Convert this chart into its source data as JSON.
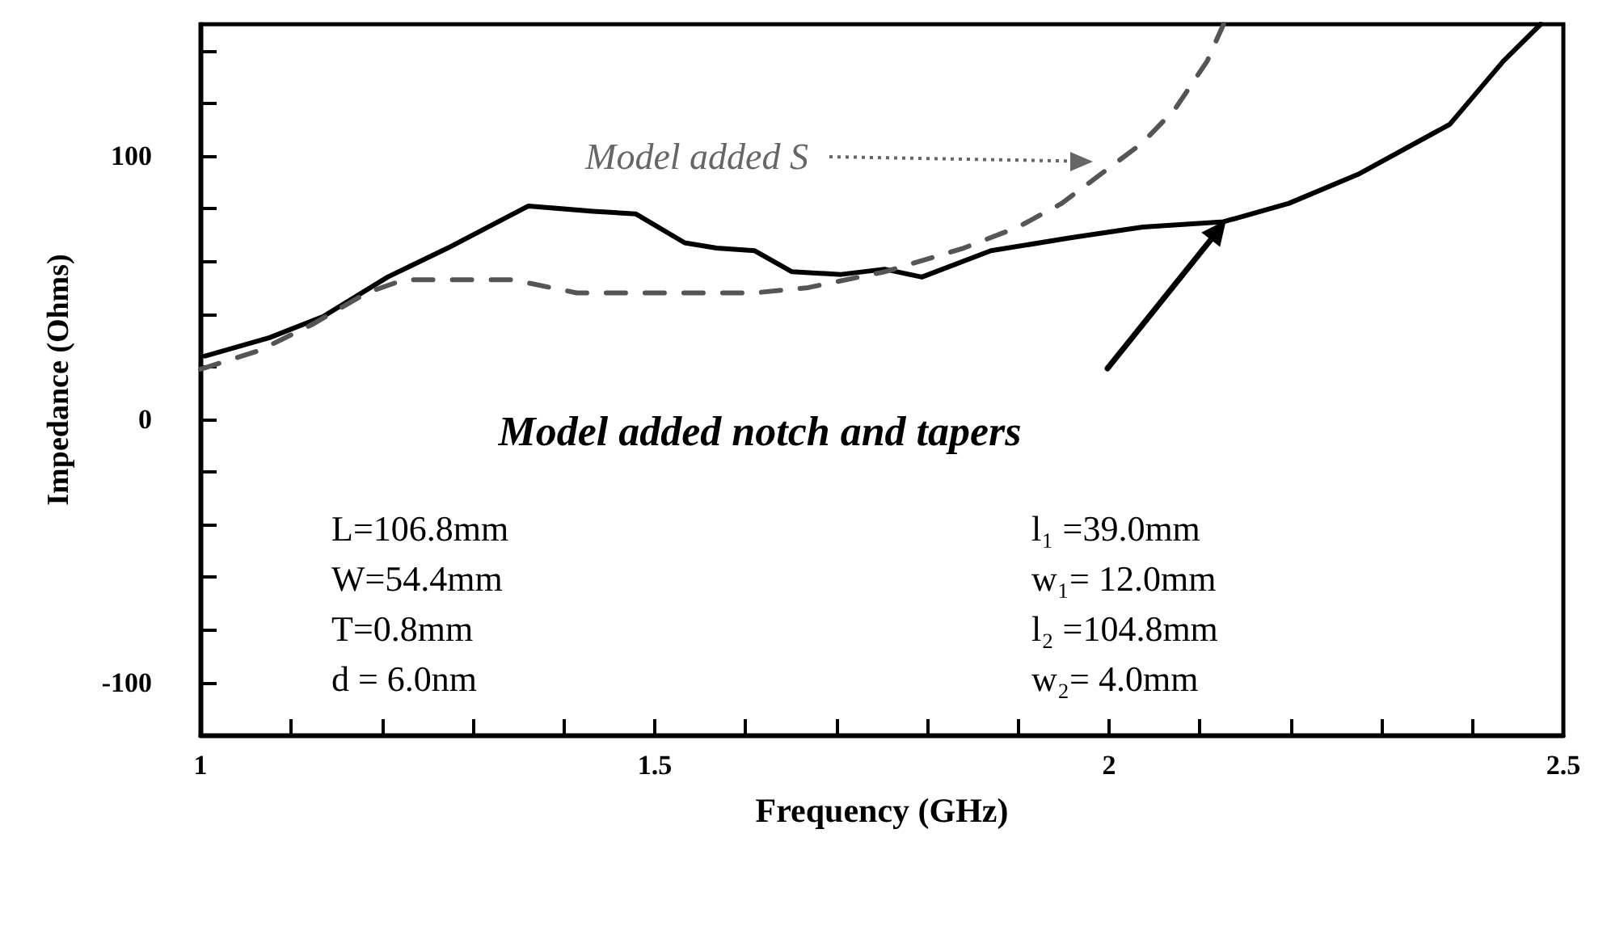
{
  "chart_data": {
    "type": "line",
    "xlabel": "Frequency (GHz)",
    "ylabel": "Impedance (Ohms)",
    "xlim": [
      1,
      2.5
    ],
    "ylim": [
      -120,
      150
    ],
    "xticks": [
      1,
      {
        "value": 1.1,
        "label": null
      },
      {
        "value": 1.2,
        "label": null
      },
      {
        "value": 1.3,
        "label": null
      },
      {
        "value": 1.4,
        "label": null
      },
      1.5,
      {
        "value": 1.6,
        "label": null
      },
      {
        "value": 1.7,
        "label": null
      },
      {
        "value": 1.8,
        "label": null
      },
      {
        "value": 1.9,
        "label": null
      },
      2,
      {
        "value": 2.1,
        "label": null
      },
      {
        "value": 2.2,
        "label": null
      },
      {
        "value": 2.3,
        "label": null
      },
      {
        "value": 2.4,
        "label": null
      },
      2.5
    ],
    "yticks": [
      {
        "value": -120,
        "label": null
      },
      -100,
      {
        "value": -80,
        "label": null
      },
      {
        "value": -60,
        "label": null
      },
      {
        "value": -40,
        "label": null
      },
      {
        "value": -20,
        "label": null
      },
      0,
      {
        "value": 20,
        "label": null
      },
      {
        "value": 40,
        "label": null
      },
      {
        "value": 60,
        "label": null
      },
      {
        "value": 80,
        "label": null
      },
      100,
      {
        "value": 120,
        "label": null
      },
      {
        "value": 140,
        "label": null
      }
    ],
    "grid": false,
    "marker": "none",
    "series": [
      {
        "color": "#000000",
        "line_style": "solid",
        "x": [
          1.005,
          1.076,
          1.135,
          1.206,
          1.272,
          1.361,
          1.432,
          1.479,
          1.533,
          1.568,
          1.61,
          1.651,
          1.705,
          1.753,
          1.794,
          1.87,
          1.959,
          2.037,
          2.126,
          2.198,
          2.274,
          2.375,
          2.434,
          2.475
        ],
        "values": [
          24,
          31,
          39,
          54,
          65,
          81,
          79,
          78,
          67,
          65,
          64,
          56,
          55,
          57,
          54,
          64,
          69,
          73,
          75,
          82,
          93,
          112,
          136,
          150
        ]
      },
      {
        "color": "#555555",
        "line_style": "dashed",
        "x": [
          1.0,
          1.064,
          1.123,
          1.183,
          1.224,
          1.343,
          1.414,
          1.491,
          1.61,
          1.669,
          1.753,
          1.84,
          1.9,
          1.948,
          2.037,
          2.073,
          2.108,
          2.126
        ],
        "values": [
          19,
          26,
          36,
          48,
          53,
          53,
          48,
          48,
          48,
          50,
          56,
          65,
          73,
          82,
          105,
          118,
          136,
          150
        ]
      }
    ],
    "annotations": [
      "Model added S",
      "Model added notch and tapers",
      "L=106.8mm",
      "W=54.4mm",
      "T=0.8mm",
      "d = 6.0nm",
      "l₁ =39.0mm",
      "w₁= 12.0mm",
      "l₂ =104.8mm",
      "w₂= 4.0mm"
    ]
  }
}
